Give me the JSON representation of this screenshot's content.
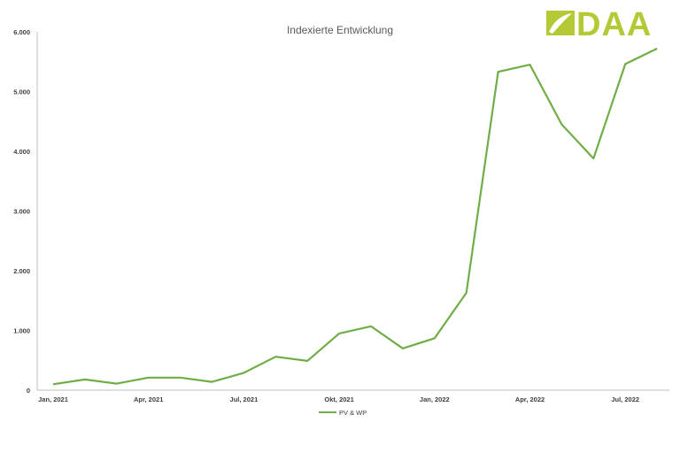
{
  "logo": {
    "text": "DAA",
    "color": "#b5c935"
  },
  "chart_data": {
    "type": "line",
    "title": "Indexierte Entwicklung",
    "xlabel": "",
    "ylabel": "",
    "ylim": [
      0,
      6000
    ],
    "y_ticks": [
      0,
      1000,
      2000,
      3000,
      4000,
      5000,
      6000
    ],
    "y_tick_labels": [
      "0",
      "1.000",
      "2.000",
      "3.000",
      "4.000",
      "5.000",
      "6.000"
    ],
    "x_tick_labels": [
      "Jan, 2021",
      "Apr, 2021",
      "Jul, 2021",
      "Okt, 2021",
      "Jan, 2022",
      "Apr, 2022",
      "Jul, 2022"
    ],
    "categories": [
      "Jan 2021",
      "Feb 2021",
      "Mär 2021",
      "Apr 2021",
      "Mai 2021",
      "Jun 2021",
      "Jul 2021",
      "Aug 2021",
      "Sep 2021",
      "Okt 2021",
      "Nov 2021",
      "Dez 2021",
      "Jan 2022",
      "Feb 2022",
      "Mär 2022",
      "Apr 2022",
      "Mai 2022",
      "Jun 2022",
      "Jul 2022",
      "Aug 2022"
    ],
    "series": [
      {
        "name": "PV & WP",
        "color": "#70ad47",
        "values": [
          100,
          180,
          110,
          210,
          210,
          140,
          290,
          560,
          490,
          950,
          1070,
          700,
          870,
          1630,
          5330,
          5450,
          4450,
          3880,
          5460,
          5720
        ]
      }
    ],
    "grid": false,
    "legend": "bottom"
  }
}
